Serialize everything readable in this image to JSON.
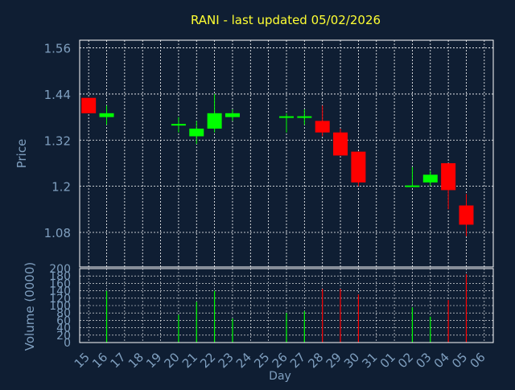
{
  "title": "RANI - last updated 05/02/2026",
  "colors": {
    "background": "#0f1e33",
    "title": "#ffff33",
    "axis_text": "#7f9fbf",
    "grid": "#ffffff",
    "up": "#00ff00",
    "down": "#ff0000"
  },
  "chart_data": [
    {
      "type": "candlestick",
      "ylabel": "Price",
      "ylim": [
        0.99,
        1.58
      ],
      "yticks": [
        "1.56",
        "1.44",
        "1.32",
        "1.2",
        "1.08"
      ],
      "x": [
        "15",
        "16",
        "17",
        "18",
        "19",
        "20",
        "21",
        "22",
        "23",
        "24",
        "25",
        "26",
        "27",
        "28",
        "29",
        "30",
        "31",
        "01",
        "02",
        "03",
        "04",
        "05",
        "06"
      ],
      "candles": [
        {
          "day": "15",
          "open": 1.43,
          "high": 1.43,
          "low": 1.39,
          "close": 1.39
        },
        {
          "day": "16",
          "open": 1.38,
          "high": 1.41,
          "low": 1.36,
          "close": 1.39
        },
        {
          "day": "20",
          "open": 1.36,
          "high": 1.38,
          "low": 1.34,
          "close": 1.36
        },
        {
          "day": "21",
          "open": 1.33,
          "high": 1.37,
          "low": 1.31,
          "close": 1.35
        },
        {
          "day": "22",
          "open": 1.35,
          "high": 1.44,
          "low": 1.34,
          "close": 1.39
        },
        {
          "day": "23",
          "open": 1.38,
          "high": 1.4,
          "low": 1.37,
          "close": 1.39
        },
        {
          "day": "26",
          "open": 1.38,
          "high": 1.39,
          "low": 1.34,
          "close": 1.38
        },
        {
          "day": "27",
          "open": 1.38,
          "high": 1.4,
          "low": 1.36,
          "close": 1.38
        },
        {
          "day": "28",
          "open": 1.37,
          "high": 1.41,
          "low": 1.33,
          "close": 1.34
        },
        {
          "day": "29",
          "open": 1.34,
          "high": 1.35,
          "low": 1.28,
          "close": 1.28
        },
        {
          "day": "30",
          "open": 1.29,
          "high": 1.29,
          "low": 1.2,
          "close": 1.21
        },
        {
          "day": "02",
          "open": 1.2,
          "high": 1.25,
          "low": 1.2,
          "close": 1.2
        },
        {
          "day": "03",
          "open": 1.21,
          "high": 1.24,
          "low": 1.2,
          "close": 1.23
        },
        {
          "day": "04",
          "open": 1.26,
          "high": 1.26,
          "low": 1.14,
          "close": 1.19
        },
        {
          "day": "05",
          "open": 1.15,
          "high": 1.18,
          "low": 1.07,
          "close": 1.1
        }
      ]
    },
    {
      "type": "bar",
      "ylabel": "Volume (0000)",
      "xlabel": "Day",
      "ylim": [
        0,
        200
      ],
      "yticks": [
        "200",
        "180",
        "160",
        "140",
        "120",
        "100",
        "80",
        "60",
        "40",
        "20",
        "0"
      ],
      "x": [
        "15",
        "16",
        "17",
        "18",
        "19",
        "20",
        "21",
        "22",
        "23",
        "24",
        "25",
        "26",
        "27",
        "28",
        "29",
        "30",
        "31",
        "01",
        "02",
        "03",
        "04",
        "05",
        "06"
      ],
      "bars": [
        {
          "day": "16",
          "value": 140,
          "direction": "up"
        },
        {
          "day": "20",
          "value": 75,
          "direction": "up"
        },
        {
          "day": "21",
          "value": 110,
          "direction": "up"
        },
        {
          "day": "22",
          "value": 140,
          "direction": "up"
        },
        {
          "day": "23",
          "value": 65,
          "direction": "up"
        },
        {
          "day": "26",
          "value": 80,
          "direction": "up"
        },
        {
          "day": "27",
          "value": 85,
          "direction": "up"
        },
        {
          "day": "28",
          "value": 145,
          "direction": "down"
        },
        {
          "day": "29",
          "value": 145,
          "direction": "down"
        },
        {
          "day": "30",
          "value": 130,
          "direction": "down"
        },
        {
          "day": "02",
          "value": 95,
          "direction": "up"
        },
        {
          "day": "03",
          "value": 70,
          "direction": "up"
        },
        {
          "day": "04",
          "value": 115,
          "direction": "down"
        },
        {
          "day": "05",
          "value": 185,
          "direction": "down"
        }
      ]
    }
  ]
}
